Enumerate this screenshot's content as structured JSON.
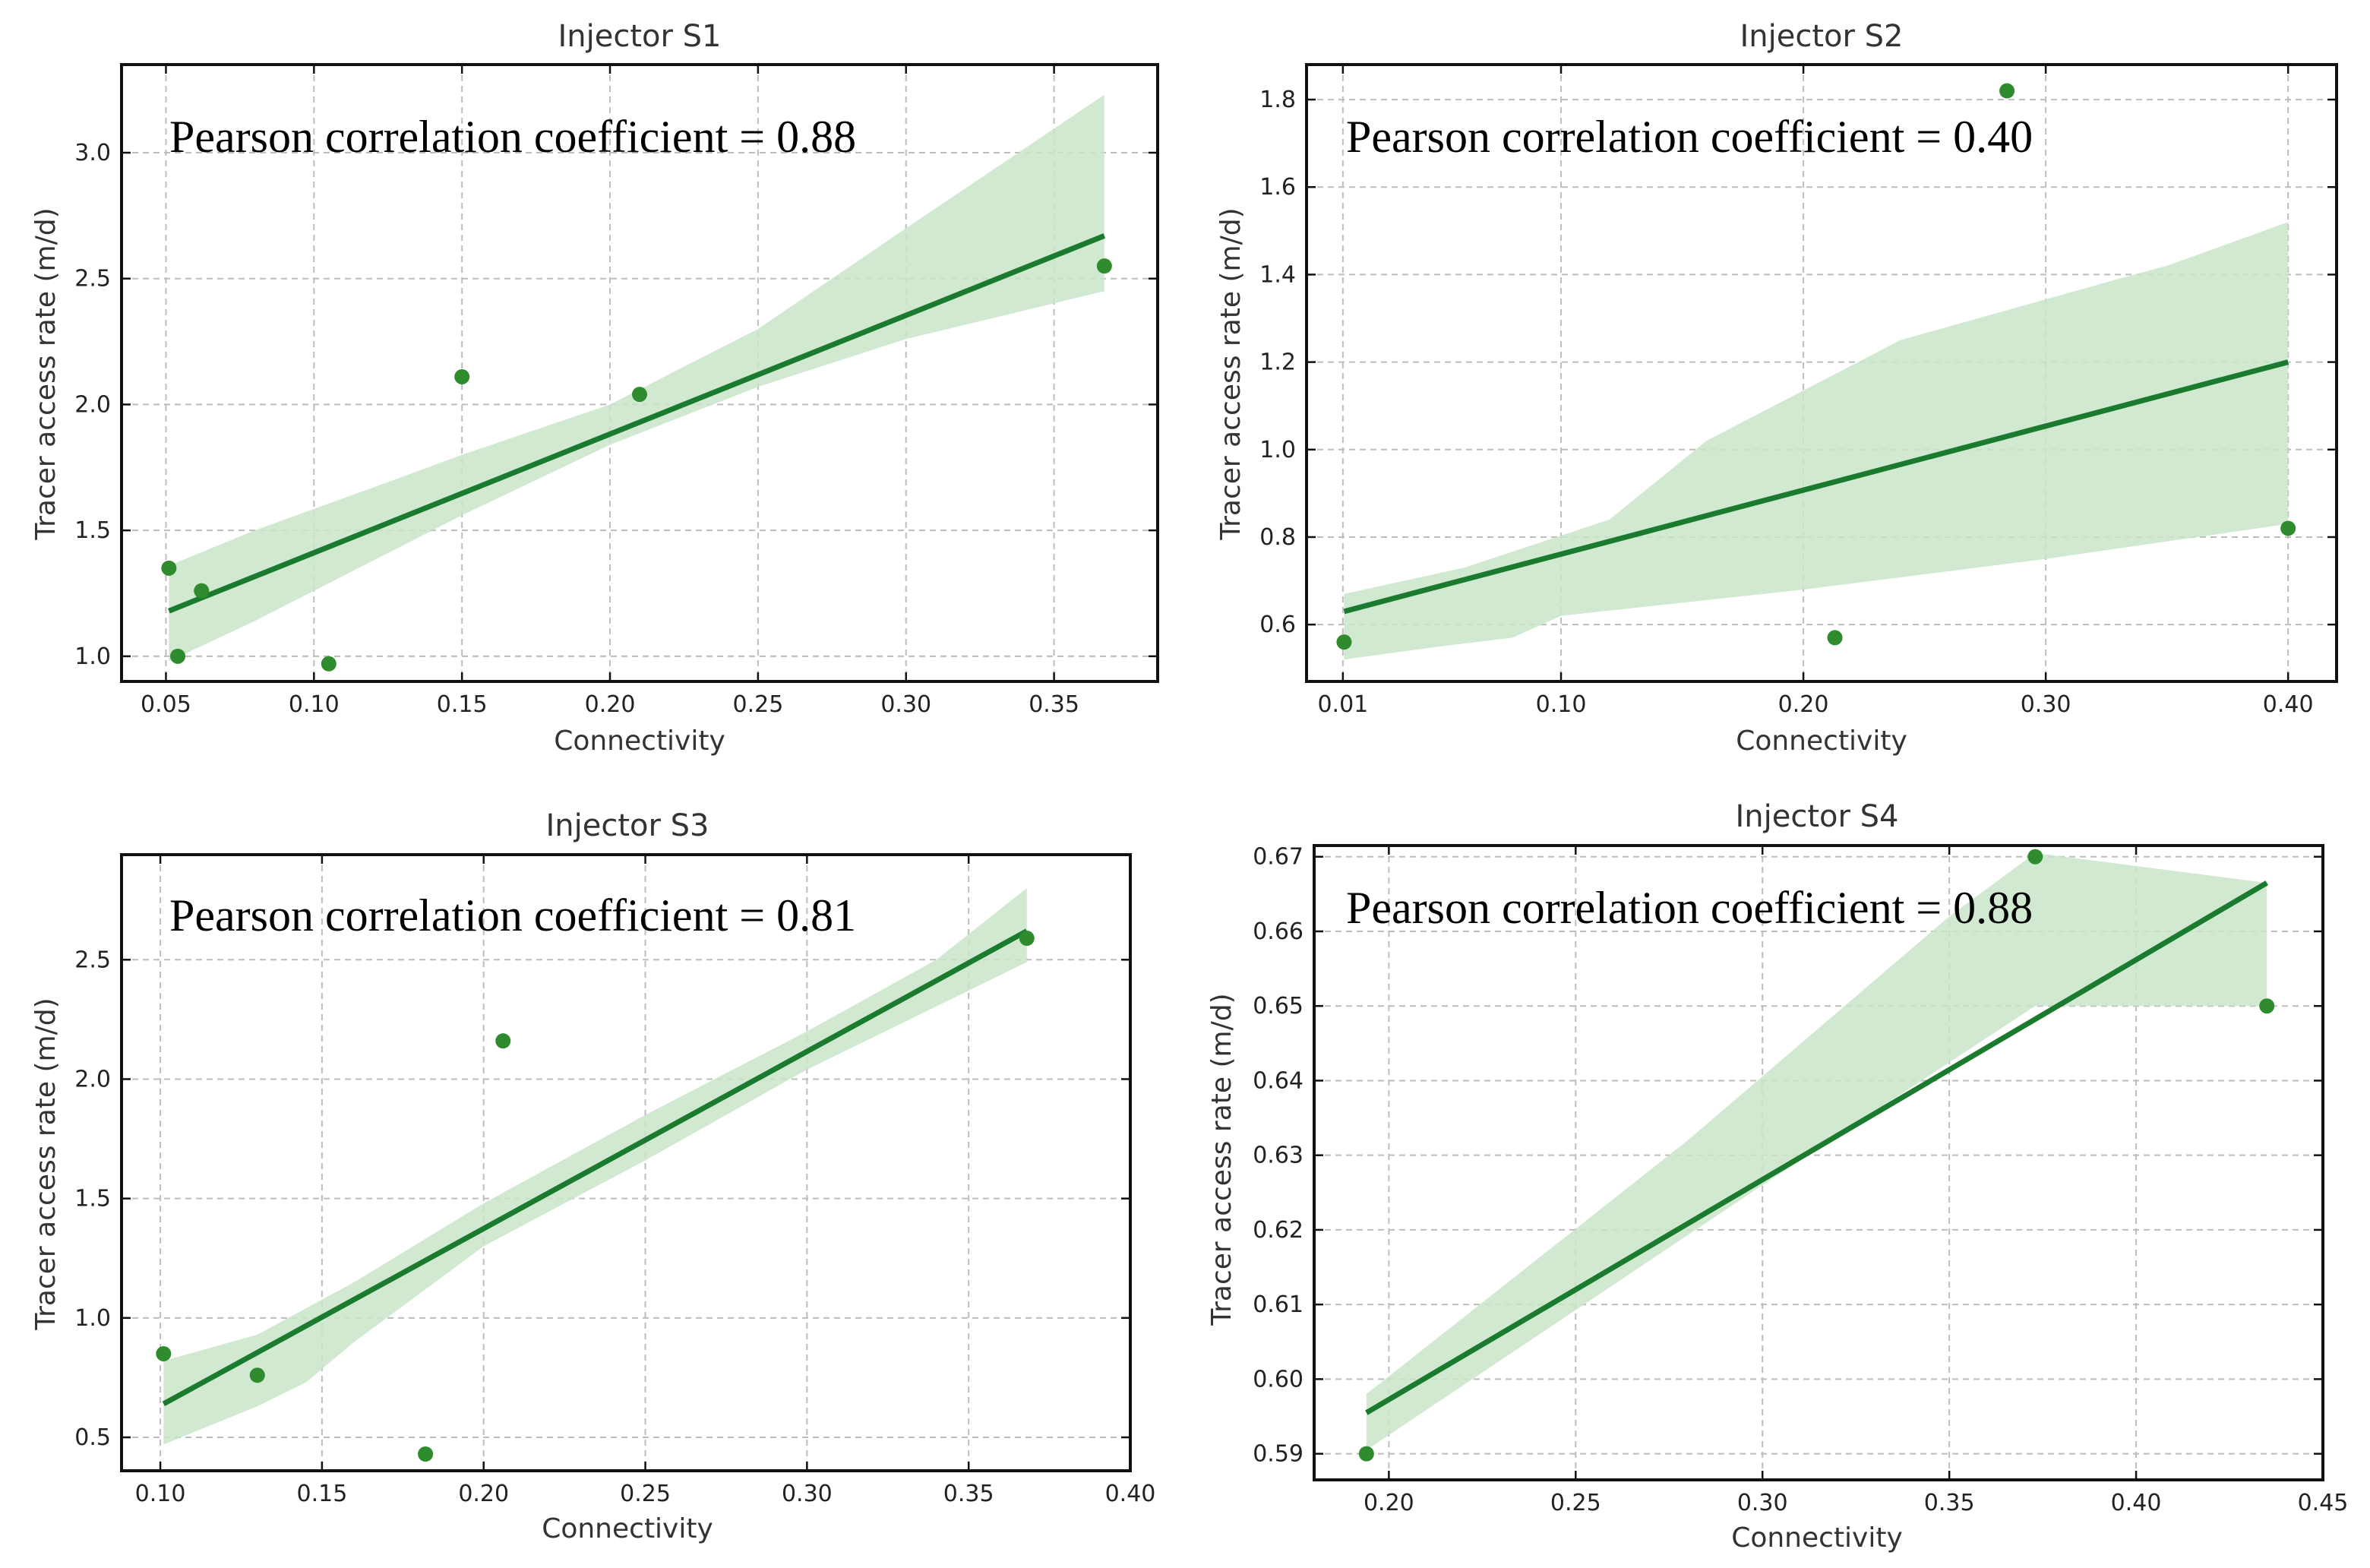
{
  "colors": {
    "line": "#1a7a2e",
    "points": "#2e8b2e",
    "band": "#c9e4c9"
  },
  "chart_data": [
    {
      "type": "scatter",
      "title": "Injector S1",
      "xlabel": "Connectivity",
      "ylabel": "Tracer access rate (m/d)",
      "annotation": "Pearson correlation coefficient = 0.88",
      "xlim": [
        0.035,
        0.385
      ],
      "ylim": [
        0.9,
        3.35
      ],
      "xticks": [
        0.05,
        0.1,
        0.15,
        0.2,
        0.25,
        0.3,
        0.35
      ],
      "xtick_labels": [
        "0.05",
        "0.10",
        "0.15",
        "0.20",
        "0.25",
        "0.30",
        "0.35"
      ],
      "yticks": [
        1.0,
        1.5,
        2.0,
        2.5,
        3.0
      ],
      "ytick_labels": [
        "1.0",
        "1.5",
        "2.0",
        "2.5",
        "3.0"
      ],
      "points": [
        [
          0.051,
          1.35
        ],
        [
          0.054,
          1.0
        ],
        [
          0.062,
          1.26
        ],
        [
          0.105,
          0.97
        ],
        [
          0.15,
          2.11
        ],
        [
          0.21,
          2.04
        ],
        [
          0.367,
          2.55
        ]
      ],
      "regression_line": [
        [
          0.051,
          1.18
        ],
        [
          0.367,
          2.67
        ]
      ],
      "ci_upper": [
        [
          0.051,
          1.36
        ],
        [
          0.08,
          1.5
        ],
        [
          0.12,
          1.67
        ],
        [
          0.15,
          1.8
        ],
        [
          0.2,
          2.0
        ],
        [
          0.25,
          2.3
        ],
        [
          0.3,
          2.7
        ],
        [
          0.367,
          3.23
        ]
      ],
      "ci_lower": [
        [
          0.051,
          0.98
        ],
        [
          0.08,
          1.14
        ],
        [
          0.12,
          1.38
        ],
        [
          0.15,
          1.56
        ],
        [
          0.2,
          1.84
        ],
        [
          0.25,
          2.07
        ],
        [
          0.3,
          2.26
        ],
        [
          0.367,
          2.45
        ]
      ]
    },
    {
      "type": "scatter",
      "title": "Injector S2",
      "xlabel": "Connectivity",
      "ylabel": "Tracer access rate (m/d)",
      "annotation": "Pearson correlation coefficient = 0.40",
      "xlim": [
        -0.005,
        0.42
      ],
      "ylim": [
        0.47,
        1.88
      ],
      "xticks": [
        0.01,
        0.1,
        0.2,
        0.3,
        0.4
      ],
      "xtick_labels": [
        "0.01",
        "0.10",
        "0.20",
        "0.30",
        "0.40"
      ],
      "yticks": [
        0.6,
        0.8,
        1.0,
        1.2,
        1.4,
        1.6,
        1.8
      ],
      "ytick_labels": [
        "0.6",
        "0.8",
        "1.0",
        "1.2",
        "1.4",
        "1.6",
        "1.8"
      ],
      "points": [
        [
          0.0105,
          0.56
        ],
        [
          0.213,
          0.57
        ],
        [
          0.284,
          1.82
        ],
        [
          0.4,
          0.82
        ]
      ],
      "regression_line": [
        [
          0.0105,
          0.63
        ],
        [
          0.4,
          1.2
        ]
      ],
      "ci_upper": [
        [
          0.0105,
          0.67
        ],
        [
          0.06,
          0.73
        ],
        [
          0.12,
          0.84
        ],
        [
          0.16,
          1.02
        ],
        [
          0.24,
          1.25
        ],
        [
          0.33,
          1.39
        ],
        [
          0.35,
          1.42
        ],
        [
          0.4,
          1.52
        ]
      ],
      "ci_lower": [
        [
          0.0105,
          0.52
        ],
        [
          0.05,
          0.55
        ],
        [
          0.08,
          0.57
        ],
        [
          0.1,
          0.62
        ],
        [
          0.2,
          0.68
        ],
        [
          0.3,
          0.75
        ],
        [
          0.4,
          0.83
        ]
      ]
    },
    {
      "type": "scatter",
      "title": "Injector S3",
      "xlabel": "Connectivity",
      "ylabel": "Tracer access rate (m/d)",
      "annotation": "Pearson correlation coefficient = 0.81",
      "xlim": [
        0.088,
        0.4
      ],
      "ylim": [
        0.36,
        2.94
      ],
      "xticks": [
        0.1,
        0.15,
        0.2,
        0.25,
        0.3,
        0.35,
        0.4
      ],
      "xtick_labels": [
        "0.10",
        "0.15",
        "0.20",
        "0.25",
        "0.30",
        "0.35",
        "0.40"
      ],
      "yticks": [
        0.5,
        1.0,
        1.5,
        2.0,
        2.5
      ],
      "ytick_labels": [
        "0.5",
        "1.0",
        "1.5",
        "2.0",
        "2.5"
      ],
      "points": [
        [
          0.101,
          0.85
        ],
        [
          0.13,
          0.76
        ],
        [
          0.182,
          0.43
        ],
        [
          0.206,
          2.16
        ],
        [
          0.368,
          2.59
        ]
      ],
      "regression_line": [
        [
          0.101,
          0.64
        ],
        [
          0.368,
          2.62
        ]
      ],
      "ci_upper": [
        [
          0.101,
          0.82
        ],
        [
          0.13,
          0.93
        ],
        [
          0.16,
          1.15
        ],
        [
          0.2,
          1.48
        ],
        [
          0.25,
          1.85
        ],
        [
          0.3,
          2.2
        ],
        [
          0.34,
          2.5
        ],
        [
          0.368,
          2.8
        ]
      ],
      "ci_lower": [
        [
          0.101,
          0.47
        ],
        [
          0.13,
          0.63
        ],
        [
          0.145,
          0.73
        ],
        [
          0.16,
          0.9
        ],
        [
          0.2,
          1.3
        ],
        [
          0.25,
          1.66
        ],
        [
          0.3,
          2.04
        ],
        [
          0.368,
          2.49
        ]
      ]
    },
    {
      "type": "scatter",
      "title": "Injector S4",
      "xlabel": "Connectivity",
      "ylabel": "Tracer access rate (m/d)",
      "annotation": "Pearson correlation coefficient = 0.88",
      "xlim": [
        0.18,
        0.45
      ],
      "ylim": [
        0.5865,
        0.6715
      ],
      "xticks": [
        0.2,
        0.25,
        0.3,
        0.35,
        0.4,
        0.45
      ],
      "xtick_labels": [
        "0.20",
        "0.25",
        "0.30",
        "0.35",
        "0.40",
        "0.45"
      ],
      "yticks": [
        0.59,
        0.6,
        0.61,
        0.62,
        0.63,
        0.64,
        0.65,
        0.66,
        0.67
      ],
      "ytick_labels": [
        "0.59",
        "0.60",
        "0.61",
        "0.62",
        "0.63",
        "0.64",
        "0.65",
        "0.66",
        "0.67"
      ],
      "points": [
        [
          0.194,
          0.59
        ],
        [
          0.373,
          0.67
        ],
        [
          0.435,
          0.65
        ]
      ],
      "regression_line": [
        [
          0.194,
          0.5955
        ],
        [
          0.435,
          0.6665
        ]
      ],
      "ci_upper": [
        [
          0.194,
          0.598
        ],
        [
          0.28,
          0.632
        ],
        [
          0.35,
          0.662
        ],
        [
          0.373,
          0.6705
        ],
        [
          0.435,
          0.6665
        ]
      ],
      "ci_lower": [
        [
          0.194,
          0.5905
        ],
        [
          0.3,
          0.626
        ],
        [
          0.373,
          0.65
        ],
        [
          0.435,
          0.65
        ]
      ]
    }
  ]
}
